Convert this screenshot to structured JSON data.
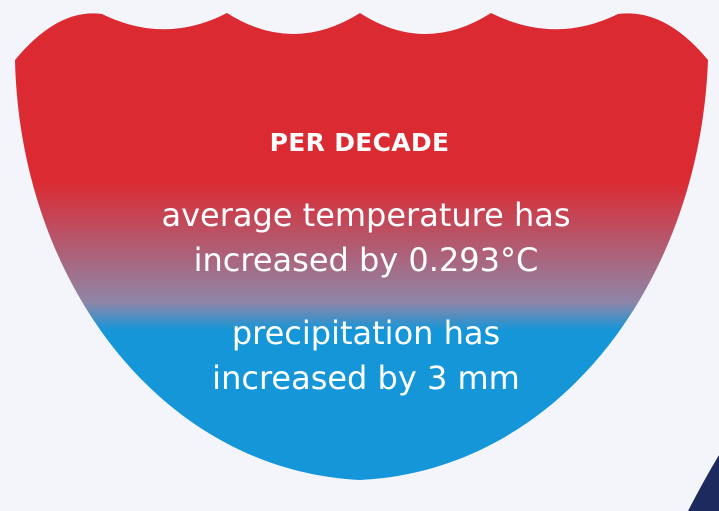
{
  "heading": "PER DECADE",
  "temperature": {
    "line1": "average temperature has",
    "line2": "increased by 0.293°C"
  },
  "precipitation": {
    "line1": "precipitation has",
    "line2": "increased by 3 mm"
  },
  "colors": {
    "background": "#f3f5fb",
    "red": "#dc2a32",
    "blue": "#1496d8",
    "text": "#ffffff",
    "corner_accent": "#1d2a5e"
  }
}
